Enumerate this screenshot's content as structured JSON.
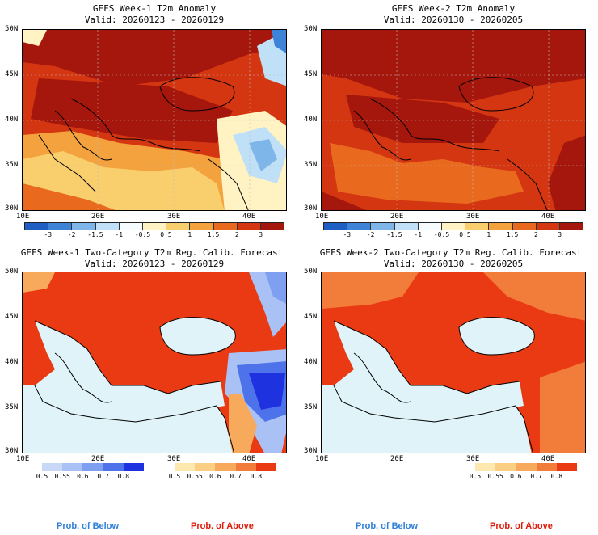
{
  "colors": {
    "anom_scale": [
      "#1f5fc4",
      "#3d84d8",
      "#7fb6ea",
      "#bfe0f6",
      "#f6fbff",
      "#fff3c4",
      "#f9cf6e",
      "#f3a23d",
      "#e96a1e",
      "#d43612",
      "#a5160c"
    ],
    "below_scale": [
      "#c8d8f6",
      "#a9c1f4",
      "#7f9ff0",
      "#4e72ea",
      "#1f32e0"
    ],
    "above_scale": [
      "#fde9b0",
      "#fbcf83",
      "#f7a95c",
      "#f27d3a",
      "#ea3a14"
    ],
    "below_text": "#2f7fd8",
    "above_text": "#e01a0a"
  },
  "panels": {
    "tl": {
      "title": "GEFS Week-1 T2m Anomaly",
      "valid": "Valid: 20260123 - 20260129"
    },
    "tr": {
      "title": "GEFS Week-2 T2m Anomaly",
      "valid": "Valid: 20260130 - 20260205"
    },
    "bl": {
      "title": "GEFS Week-1 Two-Category T2m Reg. Calib. Forecast",
      "valid": "Valid: 20260123 - 20260129"
    },
    "br": {
      "title": "GEFS Week-2 Two-Category T2m Reg. Calib. Forecast",
      "valid": "Valid: 20260130 - 20260205"
    }
  },
  "axes": {
    "lat_labels": [
      "50N",
      "45N",
      "40N",
      "35N",
      "30N"
    ],
    "lon_labels": [
      "10E",
      "20E",
      "30E",
      "40E"
    ]
  },
  "anom_ticks": [
    "-3",
    "-2",
    "-1.5",
    "-1",
    "-0.5",
    "0.5",
    "1",
    "1.5",
    "2",
    "3"
  ],
  "prob_ticks": [
    "0.5",
    "0.55",
    "0.6",
    "0.7",
    "0.8"
  ],
  "legend": {
    "below": "Prob. of Below",
    "above": "Prob. of Above"
  }
}
